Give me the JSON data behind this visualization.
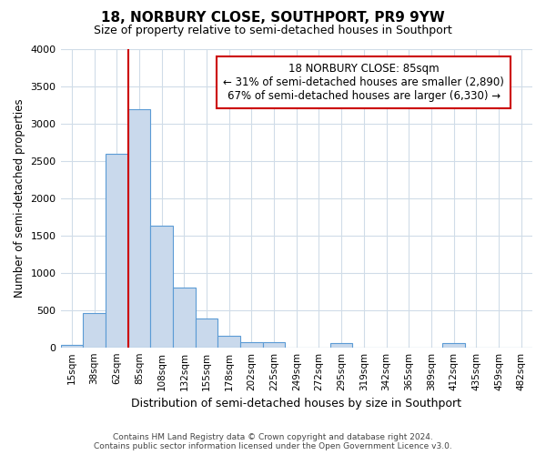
{
  "title": "18, NORBURY CLOSE, SOUTHPORT, PR9 9YW",
  "subtitle": "Size of property relative to semi-detached houses in Southport",
  "xlabel": "Distribution of semi-detached houses by size in Southport",
  "ylabel": "Number of semi-detached properties",
  "bin_labels": [
    "15sqm",
    "38sqm",
    "62sqm",
    "85sqm",
    "108sqm",
    "132sqm",
    "155sqm",
    "178sqm",
    "202sqm",
    "225sqm",
    "249sqm",
    "272sqm",
    "295sqm",
    "319sqm",
    "342sqm",
    "365sqm",
    "389sqm",
    "412sqm",
    "435sqm",
    "459sqm",
    "482sqm"
  ],
  "bar_values": [
    30,
    460,
    2600,
    3200,
    1630,
    800,
    390,
    155,
    70,
    70,
    0,
    0,
    55,
    0,
    0,
    0,
    0,
    55,
    0,
    0,
    0
  ],
  "bar_color": "#c9d9ec",
  "bar_edge_color": "#5b9bd5",
  "property_line_bar_index": 3,
  "annotation_text_line1": "18 NORBURY CLOSE: 85sqm",
  "annotation_text_line2": "← 31% of semi-detached houses are smaller (2,890)",
  "annotation_text_line3": "67% of semi-detached houses are larger (6,330) →",
  "ylim": [
    0,
    4000
  ],
  "yticks": [
    0,
    500,
    1000,
    1500,
    2000,
    2500,
    3000,
    3500,
    4000
  ],
  "footer_line1": "Contains HM Land Registry data © Crown copyright and database right 2024.",
  "footer_line2": "Contains public sector information licensed under the Open Government Licence v3.0.",
  "background_color": "#ffffff",
  "plot_bg_color": "#ffffff",
  "grid_color": "#d0dce8",
  "red_line_color": "#cc0000",
  "annotation_box_edge": "#cc0000"
}
